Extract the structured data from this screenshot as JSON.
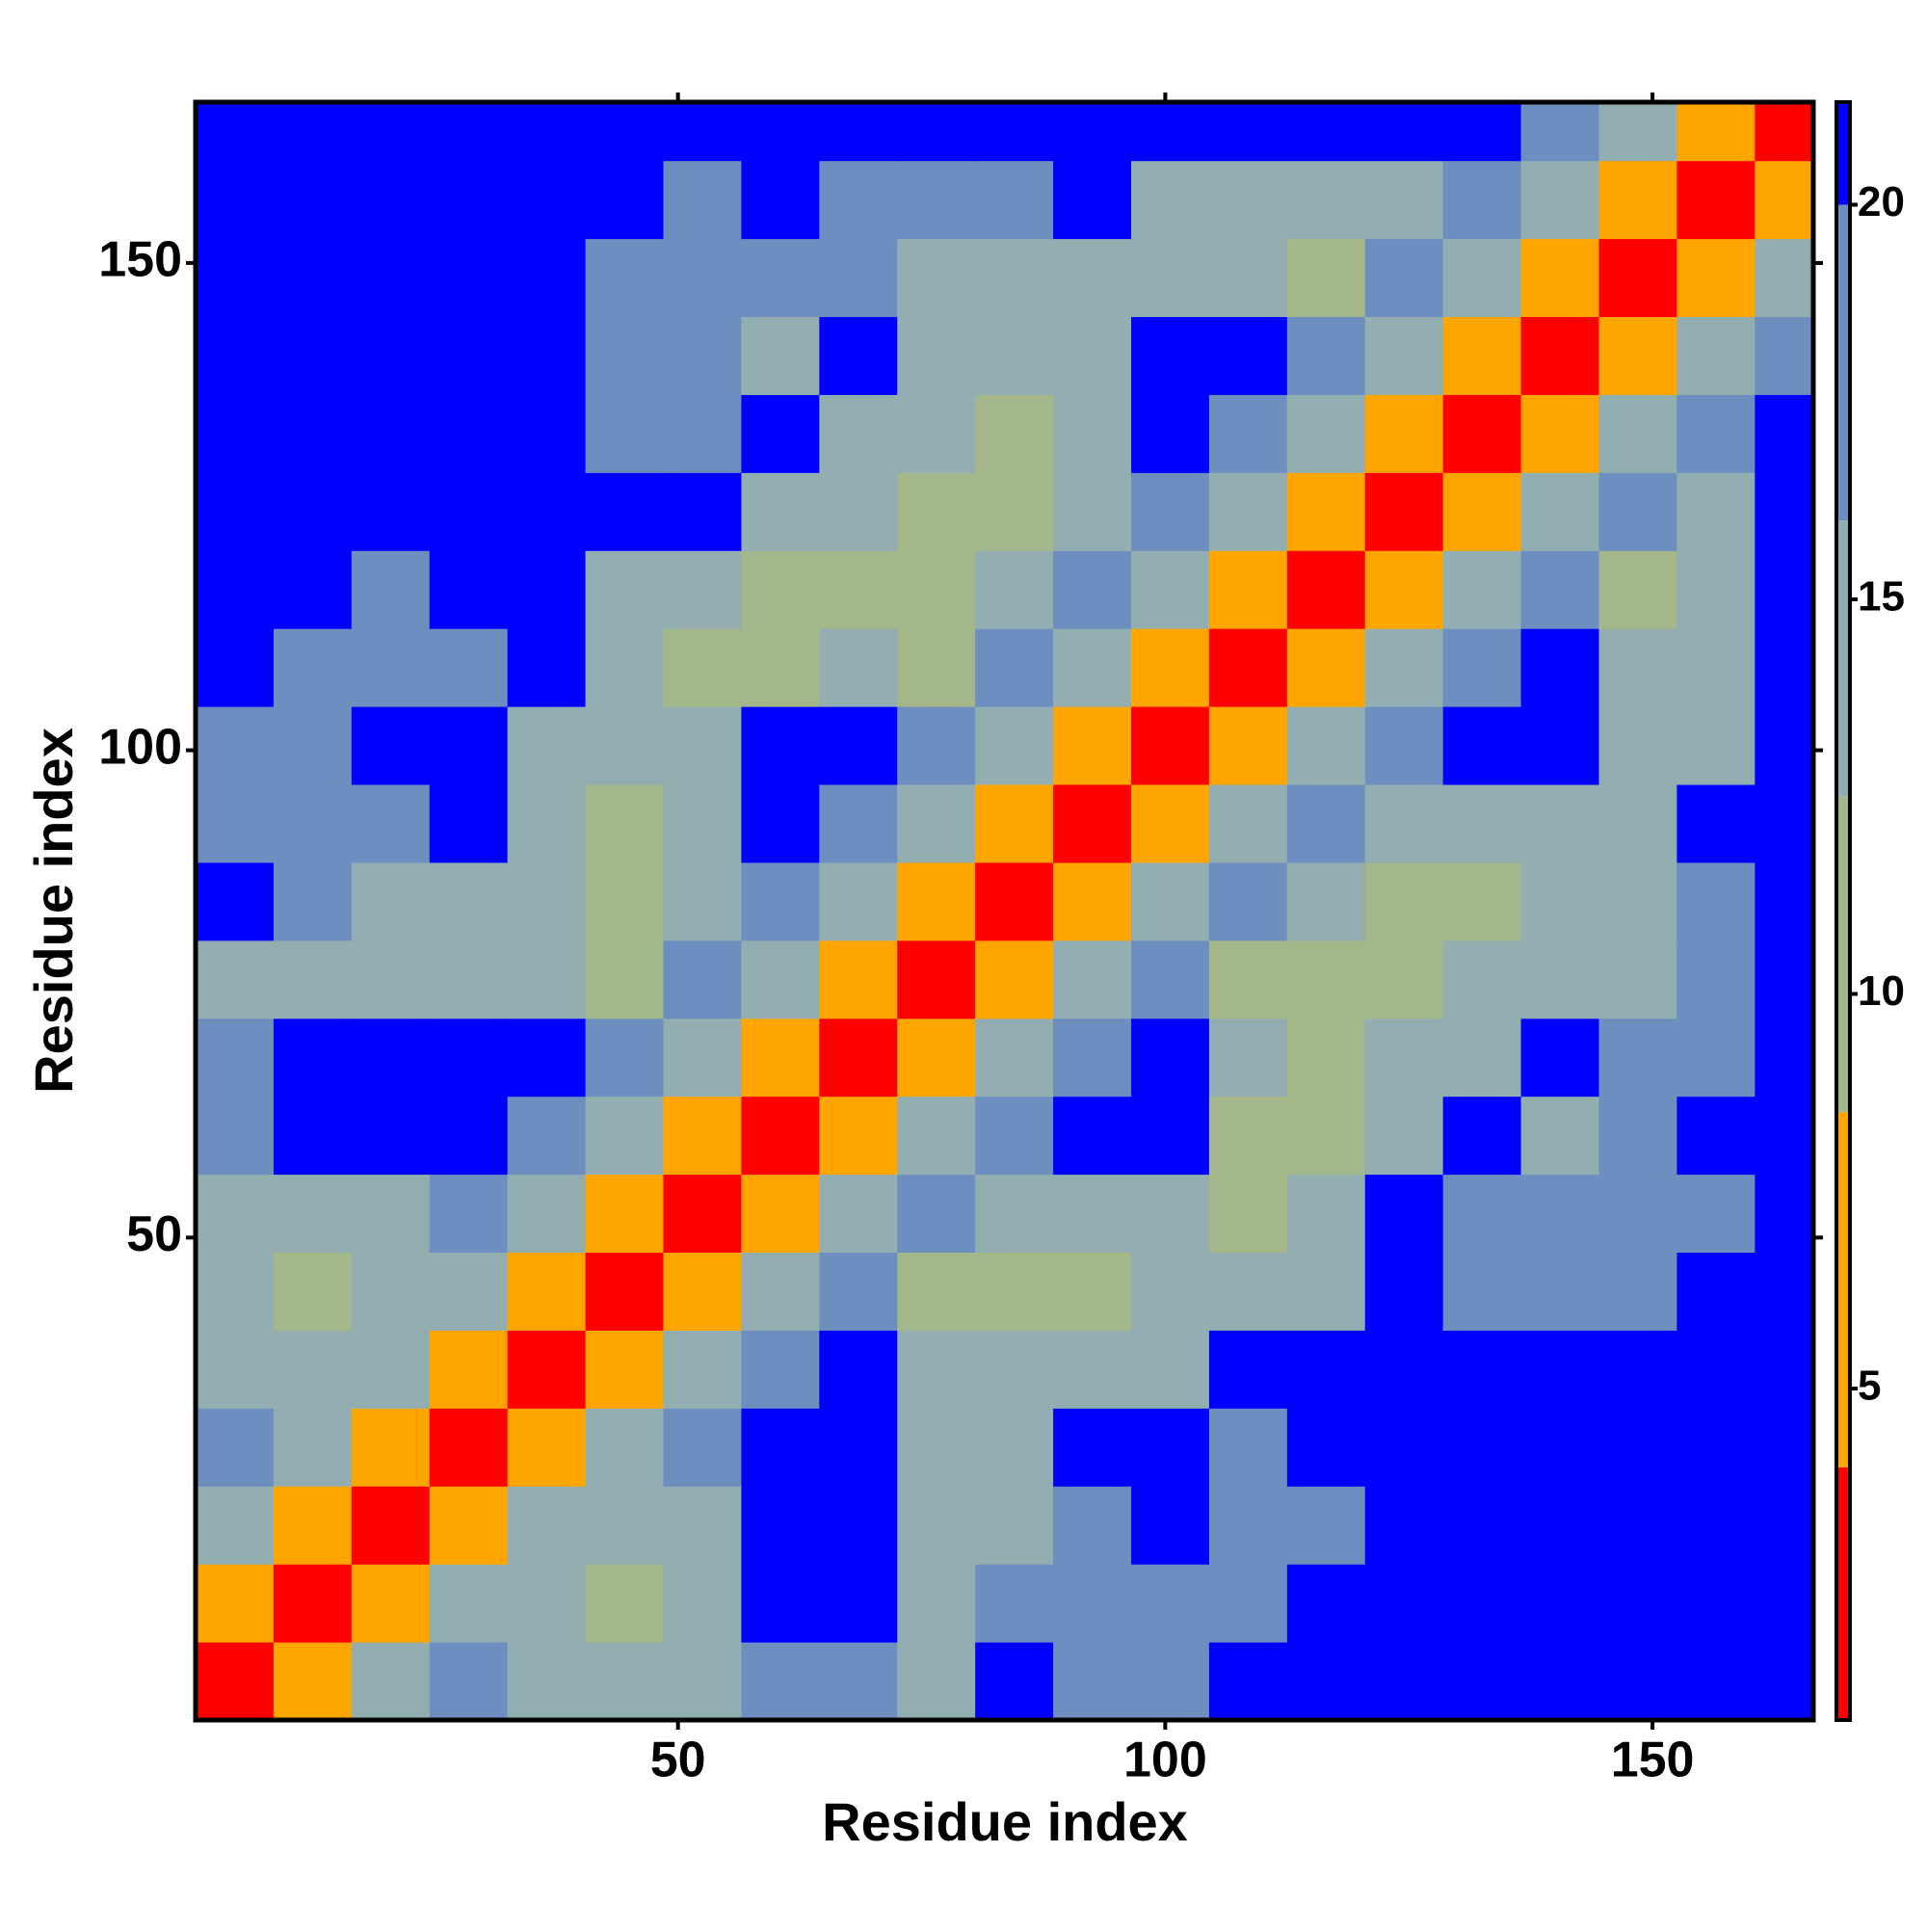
{
  "chart_data": {
    "type": "heatmap",
    "xlabel": "Residue index",
    "ylabel": "Residue index",
    "x": [
      1,
      9,
      17,
      25,
      33,
      41,
      49,
      57,
      65,
      73,
      81,
      89,
      97,
      105,
      113,
      121,
      129,
      137,
      145,
      153,
      161
    ],
    "y": [
      1,
      9,
      17,
      25,
      33,
      41,
      49,
      57,
      65,
      73,
      81,
      89,
      97,
      105,
      113,
      121,
      129,
      137,
      145,
      153,
      161
    ],
    "z": [
      [
        3,
        8,
        13,
        17,
        14,
        13,
        15,
        18,
        19,
        16,
        21,
        18,
        19,
        21,
        21,
        21,
        21,
        21,
        21,
        21,
        21
      ],
      [
        8,
        3,
        8,
        13,
        13,
        12,
        14,
        21,
        21,
        15,
        17,
        18,
        19,
        20,
        21,
        21,
        21,
        21,
        21,
        21,
        21
      ],
      [
        13,
        8,
        3,
        8,
        13,
        13,
        14,
        21,
        21,
        15,
        16,
        19,
        21,
        19,
        19,
        21,
        21,
        21,
        21,
        21,
        21
      ],
      [
        17,
        13,
        8,
        3,
        8,
        13,
        17,
        21,
        21,
        15,
        16,
        21,
        21,
        20,
        21,
        21,
        21,
        21,
        21,
        21,
        21
      ],
      [
        14,
        13,
        13,
        8,
        3,
        8,
        13,
        17,
        21,
        13,
        13,
        13,
        14,
        21,
        21,
        21,
        21,
        21,
        21,
        21,
        21
      ],
      [
        13,
        12,
        13,
        13,
        8,
        3,
        8,
        13,
        17,
        12,
        12,
        12,
        13,
        13,
        15,
        21,
        18,
        18,
        19,
        21,
        21
      ],
      [
        15,
        14,
        14,
        17,
        13,
        8,
        3,
        8,
        13,
        17,
        13,
        14,
        14,
        12,
        13,
        21,
        17,
        18,
        18,
        19,
        21
      ],
      [
        18,
        21,
        21,
        21,
        17,
        13,
        8,
        3,
        8,
        13,
        17,
        21,
        21,
        12,
        12,
        14,
        21,
        16,
        17,
        21,
        21
      ],
      [
        19,
        21,
        21,
        21,
        21,
        17,
        13,
        8,
        3,
        8,
        13,
        17,
        21,
        13,
        12,
        13,
        13,
        21,
        18,
        18,
        21
      ],
      [
        16,
        15,
        15,
        15,
        13,
        12,
        17,
        13,
        8,
        3,
        8,
        13,
        17,
        12,
        12,
        12,
        13,
        13,
        16,
        18,
        21
      ],
      [
        21,
        17,
        16,
        16,
        13,
        12,
        13,
        17,
        13,
        8,
        3,
        8,
        13,
        17,
        13,
        12,
        12,
        13,
        15,
        17,
        21
      ],
      [
        18,
        18,
        19,
        21,
        13,
        12,
        14,
        21,
        17,
        13,
        8,
        3,
        8,
        13,
        17,
        13,
        14,
        14,
        15,
        21,
        21
      ],
      [
        19,
        19,
        21,
        21,
        14,
        13,
        14,
        21,
        21,
        17,
        13,
        8,
        3,
        8,
        13,
        17,
        21,
        21,
        14,
        15,
        21
      ],
      [
        21,
        20,
        19,
        20,
        21,
        13,
        12,
        12,
        13,
        12,
        17,
        13,
        8,
        3,
        8,
        13,
        17,
        21,
        13,
        14,
        21
      ],
      [
        21,
        21,
        19,
        21,
        21,
        15,
        13,
        12,
        12,
        12,
        13,
        17,
        13,
        8,
        3,
        8,
        13,
        17,
        12,
        13,
        21
      ],
      [
        21,
        21,
        21,
        21,
        21,
        21,
        21,
        14,
        13,
        12,
        12,
        13,
        17,
        13,
        8,
        3,
        8,
        13,
        17,
        13,
        21
      ],
      [
        21,
        21,
        21,
        21,
        21,
        18,
        17,
        21,
        13,
        13,
        12,
        14,
        21,
        17,
        13,
        8,
        3,
        8,
        13,
        17,
        21
      ],
      [
        21,
        21,
        21,
        21,
        21,
        18,
        18,
        16,
        21,
        13,
        13,
        14,
        21,
        21,
        17,
        13,
        8,
        3,
        8,
        13,
        17
      ],
      [
        21,
        21,
        21,
        21,
        21,
        19,
        18,
        17,
        18,
        16,
        15,
        15,
        14,
        13,
        12,
        17,
        13,
        8,
        3,
        8,
        13
      ],
      [
        21,
        21,
        21,
        21,
        21,
        21,
        19,
        21,
        18,
        18,
        17,
        21,
        15,
        14,
        13,
        13,
        17,
        13,
        8,
        3,
        8
      ],
      [
        21,
        21,
        21,
        21,
        21,
        21,
        21,
        21,
        21,
        21,
        21,
        21,
        21,
        21,
        21,
        21,
        21,
        17,
        13,
        8,
        3
      ]
    ],
    "xlim": [
      0.5,
      166.5
    ],
    "ylim": [
      0.5,
      166.5
    ],
    "xticks": [
      50,
      100,
      150
    ],
    "yticks": [
      50,
      100,
      150
    ],
    "color_breaks": [
      0.8,
      4,
      8.5,
      12.5,
      16,
      20,
      21.3
    ],
    "colors": [
      "#ff0000",
      "#ffa500",
      "#a3b78a",
      "#93aeb0",
      "#6d8fc0",
      "#0000ff"
    ],
    "colorbar_ticks": [
      5,
      10,
      15,
      20
    ]
  }
}
